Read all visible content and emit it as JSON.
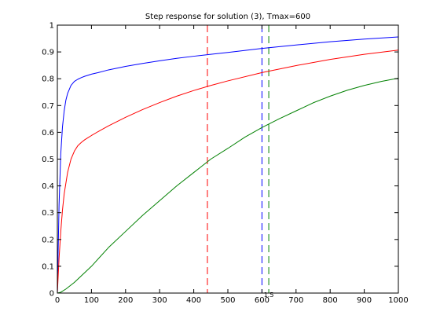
{
  "chart_data": {
    "type": "line",
    "title": "Step response for solution (3), Tmax=600",
    "xlabel": "",
    "ylabel": "",
    "xlim": [
      0,
      1000
    ],
    "ylim": [
      0,
      1
    ],
    "x_ticks": [
      0,
      100,
      200,
      300,
      400,
      500,
      600,
      700,
      800,
      900,
      1000
    ],
    "y_ticks": [
      0,
      0.1,
      0.2,
      0.3,
      0.4,
      0.5,
      0.6,
      0.7,
      0.8,
      0.9,
      1
    ],
    "x_tick_labels": [
      "0",
      "100",
      "200",
      "300",
      "400",
      "500",
      "600",
      "700",
      "800",
      "900",
      "1000"
    ],
    "y_tick_labels": [
      "0",
      "0.1",
      "0.2",
      "0.3",
      "0.4",
      "0.5",
      "0.6",
      "0.7",
      "0.8",
      "0.9",
      "1"
    ],
    "grid": false,
    "legend": "none",
    "series": [
      {
        "color": "#0000ff",
        "x": [
          0,
          5,
          10,
          15,
          20,
          25,
          30,
          40,
          50,
          60,
          70,
          80,
          90,
          100,
          120,
          150,
          200,
          250,
          300,
          350,
          400,
          450,
          500,
          600,
          700,
          800,
          900,
          1000
        ],
        "y": [
          0,
          0.33,
          0.52,
          0.62,
          0.68,
          0.72,
          0.745,
          0.775,
          0.79,
          0.798,
          0.804,
          0.809,
          0.813,
          0.817,
          0.823,
          0.833,
          0.846,
          0.857,
          0.867,
          0.876,
          0.884,
          0.891,
          0.898,
          0.913,
          0.926,
          0.938,
          0.948,
          0.956
        ]
      },
      {
        "color": "#ff0000",
        "x": [
          0,
          5,
          10,
          15,
          20,
          30,
          40,
          50,
          60,
          70,
          80,
          90,
          100,
          120,
          150,
          200,
          250,
          300,
          350,
          400,
          450,
          500,
          600,
          700,
          800,
          900,
          1000
        ],
        "y": [
          0,
          0.13,
          0.23,
          0.31,
          0.37,
          0.45,
          0.5,
          0.53,
          0.55,
          0.562,
          0.572,
          0.58,
          0.588,
          0.603,
          0.624,
          0.656,
          0.685,
          0.711,
          0.735,
          0.756,
          0.775,
          0.792,
          0.823,
          0.849,
          0.872,
          0.891,
          0.907
        ]
      },
      {
        "color": "#008000",
        "x": [
          0,
          10,
          25,
          50,
          75,
          100,
          150,
          200,
          250,
          300,
          350,
          400,
          450,
          500,
          550,
          600,
          650,
          700,
          750,
          800,
          850,
          900,
          950,
          1000
        ],
        "y": [
          0,
          0.003,
          0.015,
          0.04,
          0.07,
          0.1,
          0.17,
          0.23,
          0.29,
          0.345,
          0.4,
          0.45,
          0.5,
          0.54,
          0.582,
          0.618,
          0.65,
          0.68,
          0.71,
          0.735,
          0.757,
          0.775,
          0.79,
          0.802
        ]
      }
    ],
    "vlines": [
      {
        "x": 440,
        "color": "#ff0000"
      },
      {
        "x": 600,
        "color": "#0000ff"
      },
      {
        "x": 620,
        "color": "#008000"
      }
    ],
    "annotation": {
      "text": "1.5",
      "x": 620,
      "y": 0
    }
  }
}
